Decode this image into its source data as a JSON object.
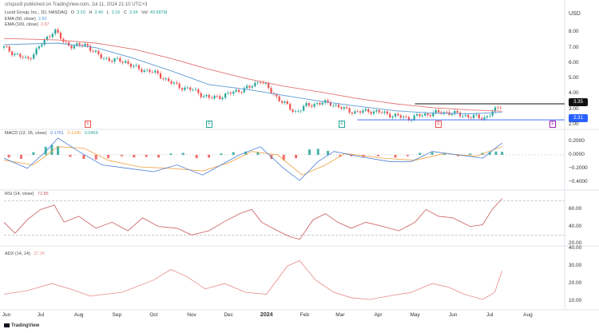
{
  "header": {
    "publisher": "crispus9 published on TradingView.com, Jul 11, 2024 21:10 UTC+3",
    "symbol": "Lucid Group, Inc., 1D, NASDAQ",
    "ohlc": {
      "o_label": "O",
      "o": "3.20",
      "h_label": "H",
      "h": "3.40",
      "l_label": "L",
      "l": "3.16",
      "c_label": "C",
      "c": "3.34",
      "vol_label": "Vol",
      "vol": "40.987M"
    },
    "ema50": {
      "label": "EMA (50, close)",
      "value": "2.80"
    },
    "ema100": {
      "label": "EMA (100, close)",
      "value": "2.87"
    },
    "currency": "USD"
  },
  "price_tags": {
    "last": "3.35",
    "support": "2.31"
  },
  "macd_legend": {
    "label": "MACD (12, 26, close)",
    "v1": "0.1761",
    "v2": "0.1240",
    "v3": "0.0459"
  },
  "rsi_legend": {
    "label": "RSI (14, close)",
    "value": "72.85"
  },
  "adx_legend": {
    "label": "ADX (14, 14)",
    "value": "27.26"
  },
  "footer": {
    "brand": "TradingView"
  },
  "events": [
    {
      "letter": "E"
    },
    {
      "letter": "E"
    },
    {
      "letter": "E"
    },
    {
      "letter": "E"
    },
    {
      "letter": "E"
    }
  ],
  "colors": {
    "up": "#26a69a",
    "down": "#ef5350",
    "ema50": "#5b9bd5",
    "ema100": "#e57373",
    "macd_line": "#4a7fd4",
    "signal_line": "#f0a040",
    "rsi": "#c95b5b",
    "adx": "#e88a8a",
    "tag_last": "#111111",
    "tag_support": "#2962ff"
  },
  "chart_data": [
    {
      "type": "candlestick",
      "x_range": [
        "2023-06-01",
        "2024-08-31"
      ],
      "ylim": [
        2.0,
        8.7
      ],
      "y_ticks": [
        2.0,
        3.0,
        4.0,
        5.0,
        6.0,
        7.0,
        8.0
      ],
      "y_tick_labels": [
        "2.00",
        "3.00",
        "4.00",
        "5.00",
        "6.00",
        "7.00",
        "8.00"
      ],
      "x_tick_labels": [
        "Jun",
        "Jul",
        "Aug",
        "Sep",
        "Oct",
        "Nov",
        "Dec",
        "2024",
        "Feb",
        "Mar",
        "Apr",
        "May",
        "Jun",
        "Jul",
        "Aug"
      ],
      "close_path": [
        [
          "2023-06-01",
          7.0
        ],
        [
          "2023-06-10",
          6.6
        ],
        [
          "2023-06-20",
          6.2
        ],
        [
          "2023-06-28",
          6.9
        ],
        [
          "2023-07-07",
          7.7
        ],
        [
          "2023-07-12",
          8.2
        ],
        [
          "2023-07-20",
          7.3
        ],
        [
          "2023-07-28",
          7.1
        ],
        [
          "2023-08-07",
          7.2
        ],
        [
          "2023-08-18",
          6.4
        ],
        [
          "2023-08-28",
          6.2
        ],
        [
          "2023-09-08",
          6.1
        ],
        [
          "2023-09-18",
          5.6
        ],
        [
          "2023-09-28",
          5.5
        ],
        [
          "2023-10-10",
          5.0
        ],
        [
          "2023-10-20",
          4.5
        ],
        [
          "2023-10-31",
          4.3
        ],
        [
          "2023-11-08",
          4.0
        ],
        [
          "2023-11-16",
          3.7
        ],
        [
          "2023-11-28",
          3.9
        ],
        [
          "2023-12-08",
          4.2
        ],
        [
          "2023-12-18",
          4.4
        ],
        [
          "2023-12-27",
          4.9
        ],
        [
          "2024-01-05",
          4.1
        ],
        [
          "2024-01-15",
          3.4
        ],
        [
          "2024-01-24",
          2.8
        ],
        [
          "2024-02-02",
          3.2
        ],
        [
          "2024-02-12",
          3.4
        ],
        [
          "2024-02-22",
          3.4
        ],
        [
          "2024-03-04",
          3.0
        ],
        [
          "2024-03-14",
          2.8
        ],
        [
          "2024-03-26",
          2.9
        ],
        [
          "2024-04-05",
          2.75
        ],
        [
          "2024-04-16",
          2.55
        ],
        [
          "2024-04-25",
          2.4
        ],
        [
          "2024-05-06",
          2.6
        ],
        [
          "2024-05-16",
          2.75
        ],
        [
          "2024-05-27",
          2.8
        ],
        [
          "2024-06-06",
          2.65
        ],
        [
          "2024-06-17",
          2.5
        ],
        [
          "2024-06-27",
          2.45
        ],
        [
          "2024-07-05",
          2.9
        ],
        [
          "2024-07-11",
          3.34
        ]
      ],
      "ema50": [
        [
          "2023-06-01",
          7.2
        ],
        [
          "2023-07-15",
          7.3
        ],
        [
          "2023-08-15",
          7.0
        ],
        [
          "2023-09-15",
          6.3
        ],
        [
          "2023-10-15",
          5.5
        ],
        [
          "2023-11-15",
          4.6
        ],
        [
          "2023-12-15",
          4.3
        ],
        [
          "2024-01-15",
          3.9
        ],
        [
          "2024-02-15",
          3.5
        ],
        [
          "2024-03-15",
          3.2
        ],
        [
          "2024-04-15",
          2.9
        ],
        [
          "2024-05-15",
          2.75
        ],
        [
          "2024-06-15",
          2.7
        ],
        [
          "2024-07-11",
          2.8
        ]
      ],
      "ema100": [
        [
          "2023-06-01",
          7.6
        ],
        [
          "2023-07-15",
          7.5
        ],
        [
          "2023-08-15",
          7.3
        ],
        [
          "2023-09-15",
          6.9
        ],
        [
          "2023-10-15",
          6.3
        ],
        [
          "2023-11-15",
          5.6
        ],
        [
          "2023-12-15",
          5.0
        ],
        [
          "2024-01-15",
          4.5
        ],
        [
          "2024-02-15",
          4.1
        ],
        [
          "2024-03-15",
          3.7
        ],
        [
          "2024-04-15",
          3.35
        ],
        [
          "2024-05-15",
          3.1
        ],
        [
          "2024-06-15",
          2.95
        ],
        [
          "2024-07-11",
          2.87
        ]
      ],
      "horizontal_levels": [
        3.35,
        2.31
      ]
    },
    {
      "type": "macd",
      "ylim": [
        -0.5,
        0.32
      ],
      "y_ticks": [
        0.2,
        0.0,
        -0.2,
        -0.4
      ],
      "y_tick_labels": [
        "0.2000",
        "0.0000",
        "−0.2000",
        "−0.4000"
      ],
      "macd_path": [
        [
          "2023-06-01",
          -0.05
        ],
        [
          "2023-06-20",
          -0.2
        ],
        [
          "2023-07-05",
          0.05
        ],
        [
          "2023-07-15",
          0.25
        ],
        [
          "2023-08-01",
          0.05
        ],
        [
          "2023-08-20",
          -0.15
        ],
        [
          "2023-09-10",
          -0.2
        ],
        [
          "2023-10-01",
          -0.25
        ],
        [
          "2023-10-20",
          -0.15
        ],
        [
          "2023-11-10",
          -0.3
        ],
        [
          "2023-11-25",
          -0.15
        ],
        [
          "2023-12-10",
          0.0
        ],
        [
          "2023-12-27",
          0.12
        ],
        [
          "2024-01-15",
          -0.2
        ],
        [
          "2024-01-28",
          -0.38
        ],
        [
          "2024-02-12",
          -0.1
        ],
        [
          "2024-02-25",
          0.05
        ],
        [
          "2024-03-15",
          -0.02
        ],
        [
          "2024-04-10",
          -0.1
        ],
        [
          "2024-04-28",
          -0.1
        ],
        [
          "2024-05-15",
          0.05
        ],
        [
          "2024-06-05",
          0.0
        ],
        [
          "2024-06-25",
          -0.05
        ],
        [
          "2024-07-11",
          0.1761
        ]
      ],
      "signal_path": [
        [
          "2023-06-01",
          -0.08
        ],
        [
          "2023-06-25",
          -0.15
        ],
        [
          "2023-07-15",
          0.12
        ],
        [
          "2023-08-05",
          0.1
        ],
        [
          "2023-08-25",
          -0.08
        ],
        [
          "2023-09-20",
          -0.18
        ],
        [
          "2023-10-15",
          -0.2
        ],
        [
          "2023-11-10",
          -0.24
        ],
        [
          "2023-12-01",
          -0.12
        ],
        [
          "2023-12-20",
          0.05
        ],
        [
          "2024-01-10",
          0.0
        ],
        [
          "2024-01-30",
          -0.3
        ],
        [
          "2024-02-18",
          -0.15
        ],
        [
          "2024-03-05",
          0.02
        ],
        [
          "2024-04-05",
          -0.05
        ],
        [
          "2024-05-01",
          -0.08
        ],
        [
          "2024-05-25",
          0.02
        ],
        [
          "2024-06-20",
          -0.02
        ],
        [
          "2024-07-11",
          0.124
        ]
      ],
      "histogram": [
        [
          "2023-06-05",
          -0.04
        ],
        [
          "2023-06-15",
          -0.06
        ],
        [
          "2023-06-25",
          0.04
        ],
        [
          "2023-07-05",
          0.12
        ],
        [
          "2023-07-10",
          0.15
        ],
        [
          "2023-07-15",
          0.13
        ],
        [
          "2023-07-25",
          -0.03
        ],
        [
          "2023-08-05",
          -0.06
        ],
        [
          "2023-08-15",
          -0.07
        ],
        [
          "2023-08-25",
          -0.05
        ],
        [
          "2023-09-05",
          -0.02
        ],
        [
          "2023-09-15",
          -0.04
        ],
        [
          "2023-09-25",
          -0.03
        ],
        [
          "2023-10-05",
          -0.04
        ],
        [
          "2023-10-15",
          0.02
        ],
        [
          "2023-10-25",
          0.03
        ],
        [
          "2023-11-05",
          -0.05
        ],
        [
          "2023-11-15",
          -0.04
        ],
        [
          "2023-11-25",
          0.02
        ],
        [
          "2023-12-05",
          0.04
        ],
        [
          "2023-12-15",
          0.05
        ],
        [
          "2023-12-25",
          0.04
        ],
        [
          "2024-01-05",
          -0.06
        ],
        [
          "2024-01-15",
          -0.08
        ],
        [
          "2024-01-25",
          -0.05
        ],
        [
          "2024-02-05",
          0.08
        ],
        [
          "2024-02-12",
          0.09
        ],
        [
          "2024-02-20",
          0.06
        ],
        [
          "2024-03-01",
          -0.03
        ],
        [
          "2024-03-10",
          -0.02
        ],
        [
          "2024-03-20",
          -0.03
        ],
        [
          "2024-04-01",
          -0.02
        ],
        [
          "2024-04-15",
          -0.04
        ],
        [
          "2024-04-25",
          -0.02
        ],
        [
          "2024-05-05",
          0.03
        ],
        [
          "2024-05-15",
          0.04
        ],
        [
          "2024-05-25",
          0.02
        ],
        [
          "2024-06-05",
          -0.02
        ],
        [
          "2024-06-15",
          0.02
        ],
        [
          "2024-06-25",
          0.03
        ],
        [
          "2024-07-01",
          0.04
        ],
        [
          "2024-07-06",
          0.05
        ],
        [
          "2024-07-11",
          0.0459
        ]
      ]
    },
    {
      "type": "line",
      "name": "RSI",
      "ylim": [
        20,
        78
      ],
      "y_ticks": [
        60,
        40,
        20
      ],
      "y_tick_labels": [
        "60.00",
        "40.00",
        "20.00"
      ],
      "bands": [
        70,
        30
      ],
      "path": [
        [
          "2023-06-01",
          45
        ],
        [
          "2023-06-10",
          32
        ],
        [
          "2023-06-20",
          48
        ],
        [
          "2023-07-01",
          60
        ],
        [
          "2023-07-12",
          65
        ],
        [
          "2023-07-20",
          45
        ],
        [
          "2023-08-01",
          52
        ],
        [
          "2023-08-15",
          38
        ],
        [
          "2023-08-28",
          45
        ],
        [
          "2023-09-10",
          35
        ],
        [
          "2023-09-22",
          50
        ],
        [
          "2023-10-05",
          40
        ],
        [
          "2023-10-20",
          38
        ],
        [
          "2023-11-01",
          30
        ],
        [
          "2023-11-15",
          35
        ],
        [
          "2023-11-28",
          46
        ],
        [
          "2023-12-10",
          55
        ],
        [
          "2023-12-20",
          60
        ],
        [
          "2023-12-28",
          45
        ],
        [
          "2024-01-10",
          35
        ],
        [
          "2024-01-20",
          28
        ],
        [
          "2024-01-28",
          25
        ],
        [
          "2024-02-08",
          48
        ],
        [
          "2024-02-18",
          55
        ],
        [
          "2024-02-28",
          45
        ],
        [
          "2024-03-10",
          38
        ],
        [
          "2024-03-22",
          45
        ],
        [
          "2024-04-05",
          40
        ],
        [
          "2024-04-18",
          35
        ],
        [
          "2024-05-01",
          45
        ],
        [
          "2024-05-10",
          60
        ],
        [
          "2024-05-20",
          52
        ],
        [
          "2024-06-01",
          50
        ],
        [
          "2024-06-15",
          40
        ],
        [
          "2024-06-25",
          42
        ],
        [
          "2024-07-03",
          60
        ],
        [
          "2024-07-11",
          72.85
        ]
      ]
    },
    {
      "type": "line",
      "name": "ADX",
      "ylim": [
        6,
        40
      ],
      "y_ticks": [
        40,
        30,
        20,
        10
      ],
      "y_tick_labels": [
        "40.00",
        "30.00",
        "20.00",
        "10.00"
      ],
      "path": [
        [
          "2023-06-01",
          14
        ],
        [
          "2023-06-20",
          16
        ],
        [
          "2023-07-10",
          20
        ],
        [
          "2023-07-25",
          17
        ],
        [
          "2023-08-10",
          13
        ],
        [
          "2023-09-05",
          15
        ],
        [
          "2023-10-01",
          22
        ],
        [
          "2023-10-15",
          28
        ],
        [
          "2023-10-28",
          24
        ],
        [
          "2023-11-12",
          17
        ],
        [
          "2023-11-28",
          20
        ],
        [
          "2023-12-15",
          15
        ],
        [
          "2024-01-01",
          14
        ],
        [
          "2024-01-18",
          30
        ],
        [
          "2024-01-28",
          33
        ],
        [
          "2024-02-10",
          22
        ],
        [
          "2024-02-25",
          15
        ],
        [
          "2024-03-10",
          12
        ],
        [
          "2024-03-25",
          11
        ],
        [
          "2024-04-10",
          13
        ],
        [
          "2024-04-28",
          15
        ],
        [
          "2024-05-15",
          20
        ],
        [
          "2024-05-28",
          18
        ],
        [
          "2024-06-10",
          14
        ],
        [
          "2024-06-25",
          11
        ],
        [
          "2024-07-05",
          15
        ],
        [
          "2024-07-11",
          27.26
        ]
      ]
    }
  ]
}
